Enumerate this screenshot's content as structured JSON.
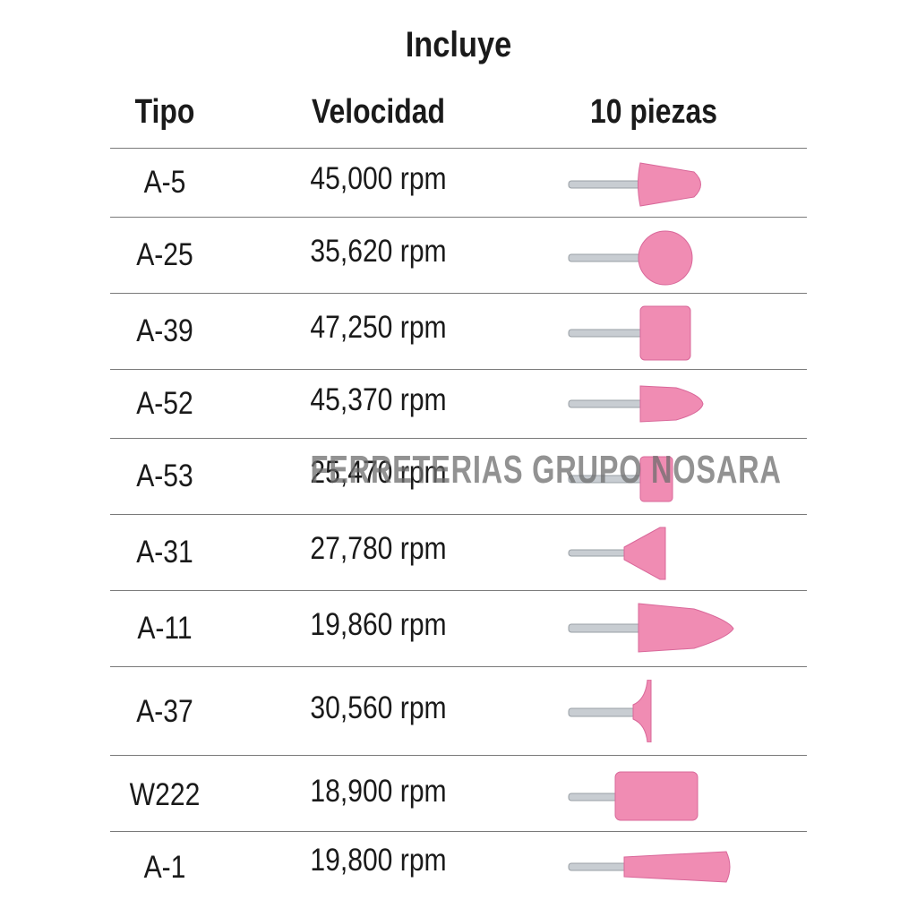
{
  "title": "Incluye",
  "headers": {
    "tipo": "Tipo",
    "velocidad": "Velocidad",
    "piezas": "10 piezas"
  },
  "watermark": "FERRETERIAS GRUPO NOSARA",
  "colors": {
    "stone": "#f08cb3",
    "stone_dark": "#d9689a",
    "shank": "#c8cdd2",
    "divider": "#7a7a7a"
  },
  "rows": [
    {
      "tipo": "A-5",
      "velocidad": "45,000 rpm",
      "icon": "cone-grinding-stone-icon"
    },
    {
      "tipo": "A-25",
      "velocidad": "35,620 rpm",
      "icon": "ball-grinding-stone-icon"
    },
    {
      "tipo": "A-39",
      "velocidad": "47,250 rpm",
      "icon": "cylinder-grinding-stone-icon"
    },
    {
      "tipo": "A-52",
      "velocidad": "45,370 rpm",
      "icon": "bullet-grinding-stone-icon"
    },
    {
      "tipo": "A-53",
      "velocidad": "25,470 rpm",
      "icon": "small-cylinder-grinding-stone-icon"
    },
    {
      "tipo": "A-31",
      "velocidad": "27,780 rpm",
      "icon": "reverse-cone-grinding-stone-icon"
    },
    {
      "tipo": "A-11",
      "velocidad": "19,860 rpm",
      "icon": "long-bullet-grinding-stone-icon"
    },
    {
      "tipo": "A-37",
      "velocidad": "30,560 rpm",
      "icon": "mushroom-grinding-stone-icon"
    },
    {
      "tipo": "W222",
      "velocidad": "18,900 rpm",
      "icon": "long-cylinder-grinding-stone-icon"
    },
    {
      "tipo": "A-1",
      "velocidad": "19,800 rpm",
      "icon": "tapered-grinding-stone-icon"
    }
  ]
}
